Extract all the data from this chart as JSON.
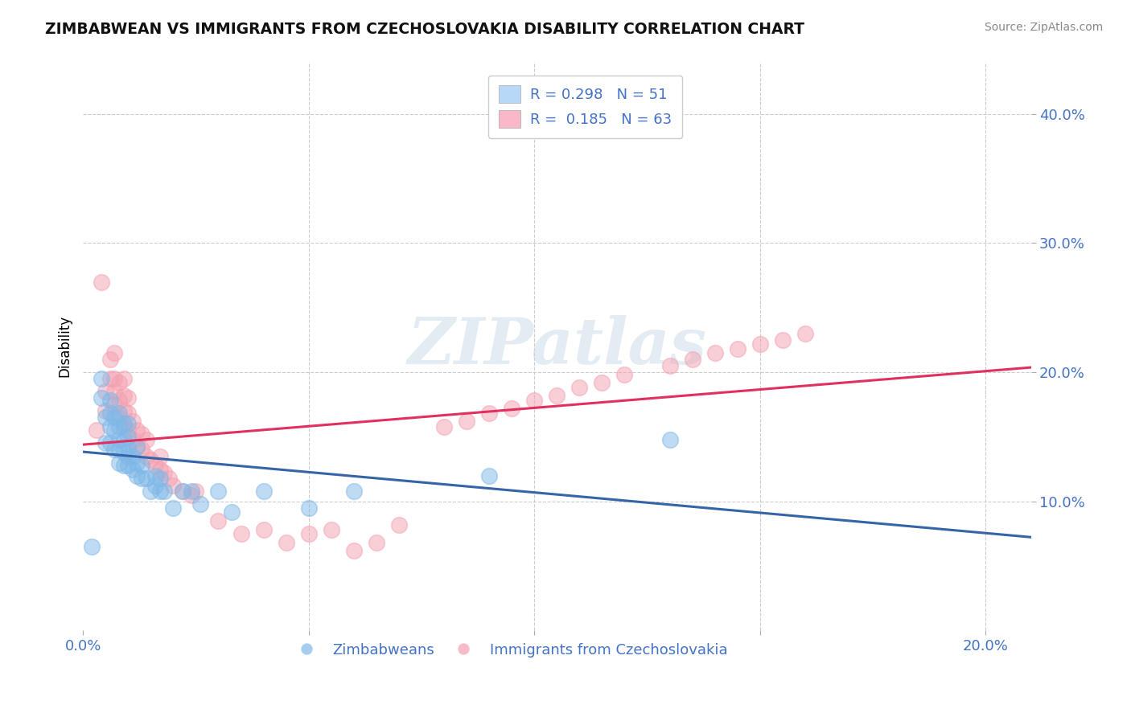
{
  "title": "ZIMBABWEAN VS IMMIGRANTS FROM CZECHOSLOVAKIA DISABILITY CORRELATION CHART",
  "source": "Source: ZipAtlas.com",
  "ylabel": "Disability",
  "xlim": [
    0.0,
    0.21
  ],
  "ylim": [
    0.0,
    0.44
  ],
  "blue_color": "#7eb8e8",
  "pink_color": "#f4a0b0",
  "blue_line_color": "#3565a8",
  "pink_line_color": "#e03060",
  "background_color": "#ffffff",
  "grid_color": "#cccccc",
  "watermark_text": "ZIPatlas",
  "blue_x": [
    0.002,
    0.004,
    0.004,
    0.005,
    0.005,
    0.006,
    0.006,
    0.006,
    0.006,
    0.007,
    0.007,
    0.007,
    0.008,
    0.008,
    0.008,
    0.008,
    0.008,
    0.009,
    0.009,
    0.009,
    0.009,
    0.01,
    0.01,
    0.01,
    0.01,
    0.01,
    0.011,
    0.011,
    0.012,
    0.012,
    0.012,
    0.013,
    0.013,
    0.014,
    0.015,
    0.016,
    0.016,
    0.017,
    0.017,
    0.018,
    0.02,
    0.022,
    0.024,
    0.026,
    0.03,
    0.033,
    0.04,
    0.05,
    0.06,
    0.09,
    0.13
  ],
  "blue_y": [
    0.065,
    0.18,
    0.195,
    0.145,
    0.165,
    0.145,
    0.158,
    0.168,
    0.178,
    0.14,
    0.155,
    0.165,
    0.13,
    0.14,
    0.148,
    0.158,
    0.168,
    0.128,
    0.138,
    0.148,
    0.16,
    0.128,
    0.135,
    0.142,
    0.15,
    0.16,
    0.125,
    0.135,
    0.12,
    0.13,
    0.142,
    0.118,
    0.128,
    0.118,
    0.108,
    0.112,
    0.12,
    0.108,
    0.118,
    0.108,
    0.095,
    0.108,
    0.108,
    0.098,
    0.108,
    0.092,
    0.108,
    0.095,
    0.108,
    0.12,
    0.148
  ],
  "pink_x": [
    0.003,
    0.004,
    0.005,
    0.005,
    0.006,
    0.006,
    0.007,
    0.007,
    0.007,
    0.007,
    0.008,
    0.008,
    0.008,
    0.009,
    0.009,
    0.009,
    0.009,
    0.01,
    0.01,
    0.01,
    0.011,
    0.011,
    0.012,
    0.012,
    0.013,
    0.013,
    0.014,
    0.014,
    0.015,
    0.016,
    0.017,
    0.017,
    0.018,
    0.019,
    0.02,
    0.022,
    0.024,
    0.025,
    0.03,
    0.035,
    0.04,
    0.045,
    0.05,
    0.055,
    0.06,
    0.065,
    0.07,
    0.08,
    0.085,
    0.09,
    0.095,
    0.1,
    0.105,
    0.11,
    0.115,
    0.12,
    0.13,
    0.135,
    0.14,
    0.145,
    0.15,
    0.155,
    0.16
  ],
  "pink_y": [
    0.155,
    0.27,
    0.17,
    0.185,
    0.195,
    0.21,
    0.175,
    0.185,
    0.195,
    0.215,
    0.165,
    0.178,
    0.192,
    0.158,
    0.17,
    0.182,
    0.195,
    0.155,
    0.168,
    0.18,
    0.148,
    0.162,
    0.142,
    0.155,
    0.14,
    0.152,
    0.135,
    0.148,
    0.132,
    0.128,
    0.125,
    0.135,
    0.122,
    0.118,
    0.112,
    0.108,
    0.105,
    0.108,
    0.085,
    0.075,
    0.078,
    0.068,
    0.075,
    0.078,
    0.062,
    0.068,
    0.082,
    0.158,
    0.162,
    0.168,
    0.172,
    0.178,
    0.182,
    0.188,
    0.192,
    0.198,
    0.205,
    0.21,
    0.215,
    0.218,
    0.222,
    0.225,
    0.23
  ],
  "legend1_labels": [
    "R = 0.298   N = 51",
    "R =  0.185   N = 63"
  ],
  "legend1_colors": [
    "#b8d8f8",
    "#f8b8c8"
  ],
  "bottom_labels": [
    "Zimbabweans",
    "Immigrants from Czechoslovakia"
  ]
}
